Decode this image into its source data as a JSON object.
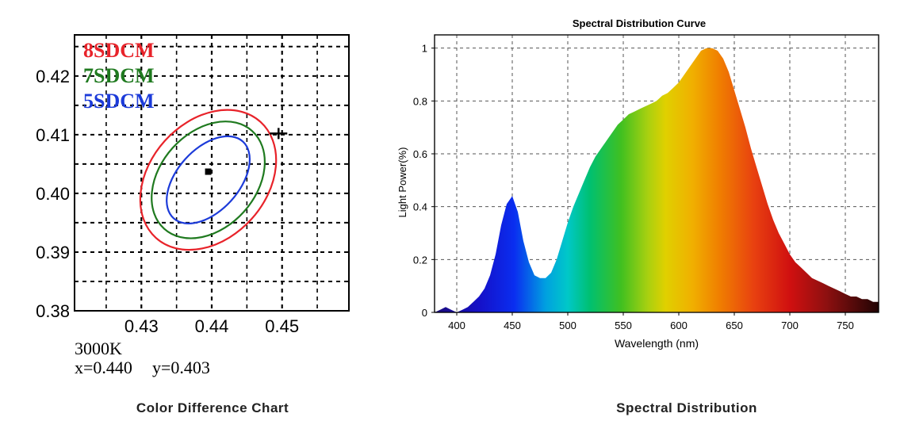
{
  "chart_data": [
    {
      "type": "line",
      "caption": "Color Difference Chart",
      "x_ticks": [
        0.43,
        0.44,
        0.45
      ],
      "x_tick_labels": [
        "0.43",
        "0.44",
        "0.45"
      ],
      "y_ticks": [
        0.38,
        0.39,
        0.4,
        0.41,
        0.42
      ],
      "y_tick_labels": [
        "0.38",
        "0.39",
        "0.40",
        "0.41",
        "0.42"
      ],
      "xlim": [
        0.4205,
        0.4595
      ],
      "ylim": [
        0.38,
        0.427
      ],
      "grid": true,
      "legend_placement": "top-left",
      "series": [
        {
          "name": "8SDCM",
          "color": "#e8232a",
          "a": 0.0083,
          "b": 0.0133,
          "angle": 42
        },
        {
          "name": "7SDCM",
          "color": "#1f7a1f",
          "a": 0.0068,
          "b": 0.0112,
          "angle": 42
        },
        {
          "name": "5SDCM",
          "color": "#1c3bd9",
          "a": 0.0044,
          "b": 0.0088,
          "angle": 42
        }
      ],
      "ellipse_center": [
        0.4395,
        0.4023
      ],
      "cross_marker": [
        0.4495,
        0.4102
      ],
      "point_marker": [
        0.4395,
        0.4037
      ],
      "cct_label": "3000K",
      "coords": {
        "x_label": "x=0.440",
        "y_label": "y=0.403"
      }
    },
    {
      "type": "area",
      "title": "Spectral Distribution Curve",
      "caption": "Spectral Distribution",
      "xlabel": "Wavelength  (nm)",
      "ylabel": "Light Power(%)",
      "xlim": [
        380,
        780
      ],
      "ylim": [
        0,
        1.05
      ],
      "x_ticks": [
        400,
        450,
        500,
        550,
        600,
        650,
        700,
        750
      ],
      "y_ticks": [
        0,
        0.2,
        0.4,
        0.6,
        0.8,
        1
      ],
      "y_tick_labels": [
        "0",
        "0.2",
        "0.4",
        "0.6",
        "0.8",
        "1"
      ],
      "grid": true,
      "x": [
        380,
        385,
        390,
        395,
        400,
        405,
        410,
        415,
        420,
        425,
        430,
        435,
        440,
        445,
        450,
        455,
        460,
        465,
        470,
        475,
        480,
        485,
        490,
        495,
        500,
        505,
        510,
        515,
        520,
        525,
        530,
        535,
        540,
        545,
        550,
        555,
        560,
        565,
        570,
        575,
        580,
        585,
        590,
        595,
        600,
        605,
        610,
        615,
        620,
        625,
        630,
        635,
        640,
        645,
        650,
        655,
        660,
        665,
        670,
        675,
        680,
        685,
        690,
        695,
        700,
        705,
        710,
        715,
        720,
        725,
        730,
        735,
        740,
        745,
        750,
        755,
        760,
        765,
        770,
        775,
        780
      ],
      "y": [
        0.0,
        0.01,
        0.02,
        0.01,
        0.0,
        0.01,
        0.02,
        0.04,
        0.06,
        0.09,
        0.14,
        0.22,
        0.33,
        0.41,
        0.44,
        0.38,
        0.27,
        0.19,
        0.14,
        0.13,
        0.13,
        0.15,
        0.2,
        0.27,
        0.34,
        0.4,
        0.45,
        0.5,
        0.55,
        0.59,
        0.62,
        0.65,
        0.68,
        0.71,
        0.73,
        0.75,
        0.76,
        0.77,
        0.78,
        0.79,
        0.8,
        0.82,
        0.83,
        0.85,
        0.87,
        0.9,
        0.93,
        0.96,
        0.99,
        1.0,
        1.0,
        0.99,
        0.96,
        0.91,
        0.84,
        0.77,
        0.7,
        0.62,
        0.55,
        0.48,
        0.41,
        0.35,
        0.3,
        0.26,
        0.22,
        0.19,
        0.17,
        0.15,
        0.13,
        0.12,
        0.11,
        0.1,
        0.09,
        0.08,
        0.07,
        0.06,
        0.06,
        0.05,
        0.05,
        0.04,
        0.04
      ]
    }
  ]
}
